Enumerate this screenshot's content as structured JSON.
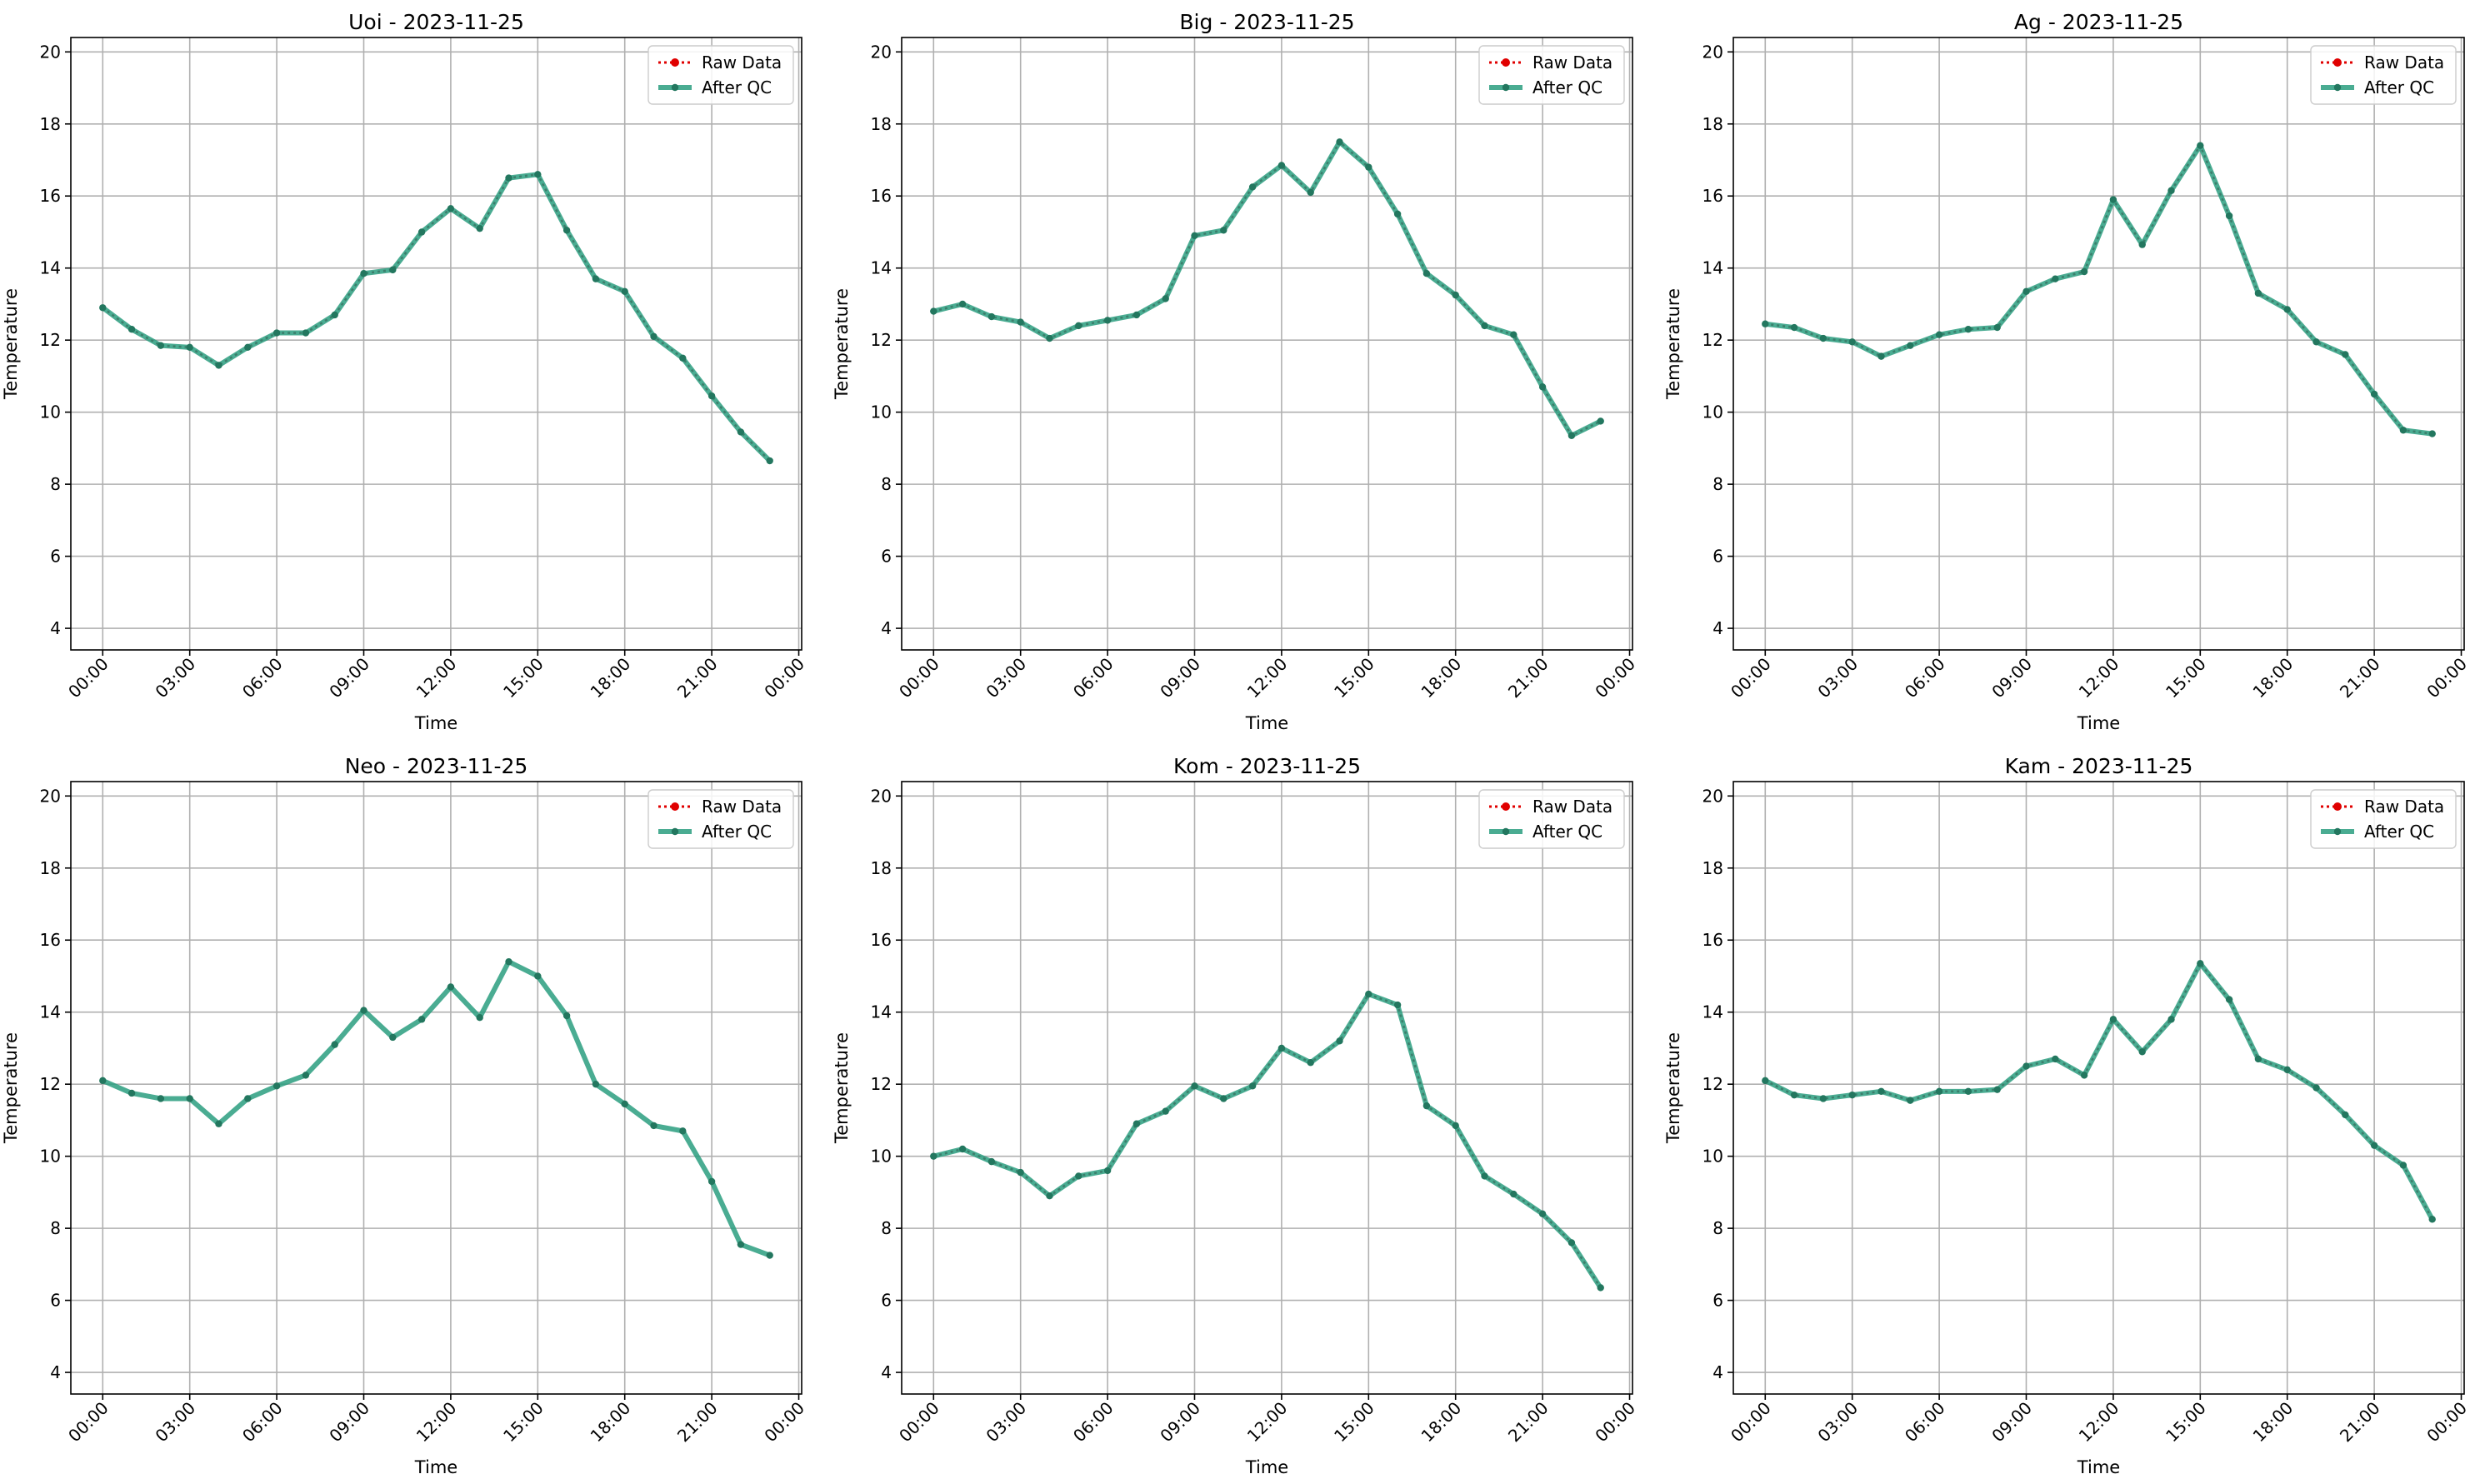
{
  "figure": {
    "colors": {
      "raw": "#e00000",
      "qc": "#2a9d7f",
      "qc_marker": "#23775f",
      "overlap_line": "#3b7f6c",
      "grid": "#b0b0b0",
      "axes": "#000000"
    }
  },
  "chart_data": [
    {
      "type": "line",
      "title": "Uoi - 2023-11-25",
      "xlabel": "Time",
      "ylabel": "Temperature",
      "ylim": [
        3.4,
        20.4
      ],
      "xlim": [
        -1.1,
        24.1
      ],
      "x_hours": [
        0,
        1,
        2,
        3,
        4,
        5,
        6,
        7,
        8,
        9,
        10,
        11,
        12,
        13,
        14,
        15,
        16,
        17,
        18,
        19,
        20,
        21,
        22,
        23
      ],
      "x_ticks": [
        "00:00",
        "03:00",
        "06:00",
        "09:00",
        "12:00",
        "15:00",
        "18:00",
        "21:00",
        "00:00"
      ],
      "y_ticks": [
        "4",
        "6",
        "8",
        "10",
        "12",
        "14",
        "16",
        "18",
        "20"
      ],
      "grid": true,
      "legend": {
        "position": "top-right",
        "entries": [
          "Raw Data",
          "After QC"
        ]
      },
      "series": [
        {
          "name": "Raw Data",
          "values": [
            12.9,
            12.3,
            11.85,
            11.8,
            11.3,
            11.8,
            12.2,
            12.2,
            12.7,
            13.85,
            13.95,
            15.0,
            15.65,
            15.1,
            16.5,
            16.6,
            15.05,
            13.7,
            13.35,
            12.1,
            11.5,
            10.45,
            9.45,
            8.65
          ]
        },
        {
          "name": "After QC",
          "values": [
            12.9,
            12.3,
            11.85,
            11.8,
            11.3,
            11.8,
            12.2,
            12.2,
            12.7,
            13.85,
            13.95,
            15.0,
            15.65,
            15.1,
            16.5,
            16.6,
            15.05,
            13.7,
            13.35,
            12.1,
            11.5,
            10.45,
            9.45,
            8.65
          ]
        }
      ]
    },
    {
      "type": "line",
      "title": "Big - 2023-11-25",
      "xlabel": "Time",
      "ylabel": "Temperature",
      "ylim": [
        3.4,
        20.4
      ],
      "xlim": [
        -1.1,
        24.1
      ],
      "x_hours": [
        0,
        1,
        2,
        3,
        4,
        5,
        6,
        7,
        8,
        9,
        10,
        11,
        12,
        13,
        14,
        15,
        16,
        17,
        18,
        19,
        20,
        21,
        22,
        23
      ],
      "x_ticks": [
        "00:00",
        "03:00",
        "06:00",
        "09:00",
        "12:00",
        "15:00",
        "18:00",
        "21:00",
        "00:00"
      ],
      "y_ticks": [
        "4",
        "6",
        "8",
        "10",
        "12",
        "14",
        "16",
        "18",
        "20"
      ],
      "grid": true,
      "legend": {
        "position": "top-right",
        "entries": [
          "Raw Data",
          "After QC"
        ]
      },
      "series": [
        {
          "name": "Raw Data",
          "values": [
            12.8,
            13.0,
            12.65,
            12.5,
            12.05,
            12.4,
            12.55,
            12.7,
            13.15,
            14.9,
            15.05,
            16.25,
            16.85,
            16.1,
            17.5,
            16.8,
            15.5,
            13.85,
            13.25,
            12.4,
            12.15,
            10.7,
            9.35,
            9.75
          ]
        },
        {
          "name": "After QC",
          "values": [
            12.8,
            13.0,
            12.65,
            12.5,
            12.05,
            12.4,
            12.55,
            12.7,
            13.15,
            14.9,
            15.05,
            16.25,
            16.85,
            16.1,
            17.5,
            16.8,
            15.5,
            13.85,
            13.25,
            12.4,
            12.15,
            10.7,
            9.35,
            9.75
          ]
        }
      ]
    },
    {
      "type": "line",
      "title": "Ag - 2023-11-25",
      "xlabel": "Time",
      "ylabel": "Temperature",
      "ylim": [
        3.4,
        20.4
      ],
      "xlim": [
        -1.1,
        24.1
      ],
      "x_hours": [
        0,
        1,
        2,
        3,
        4,
        5,
        6,
        7,
        8,
        9,
        10,
        11,
        12,
        13,
        14,
        15,
        16,
        17,
        18,
        19,
        20,
        21,
        22,
        23
      ],
      "x_ticks": [
        "00:00",
        "03:00",
        "06:00",
        "09:00",
        "12:00",
        "15:00",
        "18:00",
        "21:00",
        "00:00"
      ],
      "y_ticks": [
        "4",
        "6",
        "8",
        "10",
        "12",
        "14",
        "16",
        "18",
        "20"
      ],
      "grid": true,
      "legend": {
        "position": "top-right",
        "entries": [
          "Raw Data",
          "After QC"
        ]
      },
      "series": [
        {
          "name": "Raw Data",
          "values": [
            12.45,
            12.35,
            12.05,
            11.95,
            11.55,
            11.85,
            12.15,
            12.3,
            12.35,
            13.35,
            13.7,
            13.9,
            15.9,
            14.65,
            16.15,
            17.4,
            15.45,
            13.3,
            12.85,
            11.95,
            11.6,
            10.5,
            9.5,
            9.4
          ]
        },
        {
          "name": "After QC",
          "values": [
            12.45,
            12.35,
            12.05,
            11.95,
            11.55,
            11.85,
            12.15,
            12.3,
            12.35,
            13.35,
            13.7,
            13.9,
            15.9,
            14.65,
            16.15,
            17.4,
            15.45,
            13.3,
            12.85,
            11.95,
            11.6,
            10.5,
            9.5,
            9.4
          ]
        }
      ]
    },
    {
      "type": "line",
      "title": "Neo - 2023-11-25",
      "xlabel": "Time",
      "ylabel": "Temperature",
      "ylim": [
        3.4,
        20.4
      ],
      "xlim": [
        -1.1,
        24.1
      ],
      "x_hours": [
        0,
        1,
        2,
        3,
        4,
        5,
        6,
        7,
        8,
        9,
        10,
        11,
        12,
        13,
        14,
        15,
        16,
        17,
        18,
        19,
        20,
        21,
        22,
        23
      ],
      "x_ticks": [
        "00:00",
        "03:00",
        "06:00",
        "09:00",
        "12:00",
        "15:00",
        "18:00",
        "21:00",
        "00:00"
      ],
      "y_ticks": [
        "4",
        "6",
        "8",
        "10",
        "12",
        "14",
        "16",
        "18",
        "20"
      ],
      "grid": true,
      "legend": {
        "position": "top-right",
        "entries": [
          "Raw Data",
          "After QC"
        ]
      },
      "series": [
        {
          "name": "Raw Data",
          "values": []
        },
        {
          "name": "After QC",
          "values": [
            12.1,
            11.75,
            11.6,
            11.6,
            10.9,
            11.6,
            11.95,
            12.25,
            13.1,
            14.05,
            13.3,
            13.8,
            14.7,
            13.85,
            15.4,
            15.0,
            13.9,
            12.0,
            11.45,
            10.85,
            10.7,
            9.3,
            7.55,
            7.25
          ]
        }
      ]
    },
    {
      "type": "line",
      "title": "Kom - 2023-11-25",
      "xlabel": "Time",
      "ylabel": "Temperature",
      "ylim": [
        3.4,
        20.4
      ],
      "xlim": [
        -1.1,
        24.1
      ],
      "x_hours": [
        0,
        1,
        2,
        3,
        4,
        5,
        6,
        7,
        8,
        9,
        10,
        11,
        12,
        13,
        14,
        15,
        16,
        17,
        18,
        19,
        20,
        21,
        22,
        23
      ],
      "x_ticks": [
        "00:00",
        "03:00",
        "06:00",
        "09:00",
        "12:00",
        "15:00",
        "18:00",
        "21:00",
        "00:00"
      ],
      "y_ticks": [
        "4",
        "6",
        "8",
        "10",
        "12",
        "14",
        "16",
        "18",
        "20"
      ],
      "grid": true,
      "legend": {
        "position": "top-right",
        "entries": [
          "Raw Data",
          "After QC"
        ]
      },
      "series": [
        {
          "name": "Raw Data",
          "values": [
            10.0,
            10.2,
            9.85,
            9.55,
            8.9,
            9.45,
            9.6,
            10.9,
            11.25,
            11.95,
            11.6,
            11.95,
            13.0,
            12.6,
            13.2,
            14.5,
            14.2,
            11.4,
            10.85,
            9.45,
            8.95,
            8.4,
            7.6,
            6.35
          ]
        },
        {
          "name": "After QC",
          "values": [
            10.0,
            10.2,
            9.85,
            9.55,
            8.9,
            9.45,
            9.6,
            10.9,
            11.25,
            11.95,
            11.6,
            11.95,
            13.0,
            12.6,
            13.2,
            14.5,
            14.2,
            11.4,
            10.85,
            9.45,
            8.95,
            8.4,
            7.6,
            6.35
          ]
        }
      ]
    },
    {
      "type": "line",
      "title": "Kam - 2023-11-25",
      "xlabel": "Time",
      "ylabel": "Temperature",
      "ylim": [
        3.4,
        20.4
      ],
      "xlim": [
        -1.1,
        24.1
      ],
      "x_hours": [
        0,
        1,
        2,
        3,
        4,
        5,
        6,
        7,
        8,
        9,
        10,
        11,
        12,
        13,
        14,
        15,
        16,
        17,
        18,
        19,
        20,
        21,
        22,
        23
      ],
      "x_ticks": [
        "00:00",
        "03:00",
        "06:00",
        "09:00",
        "12:00",
        "15:00",
        "18:00",
        "21:00",
        "00:00"
      ],
      "y_ticks": [
        "4",
        "6",
        "8",
        "10",
        "12",
        "14",
        "16",
        "18",
        "20"
      ],
      "grid": true,
      "legend": {
        "position": "top-right",
        "entries": [
          "Raw Data",
          "After QC"
        ]
      },
      "series": [
        {
          "name": "Raw Data",
          "values": [
            12.1,
            11.7,
            11.6,
            11.7,
            11.8,
            11.55,
            11.8,
            11.8,
            11.85,
            12.5,
            12.7,
            12.25,
            13.8,
            12.9,
            13.8,
            15.35,
            14.35,
            12.7,
            12.4,
            11.9,
            11.15,
            10.3,
            9.75,
            8.25
          ]
        },
        {
          "name": "After QC",
          "values": [
            12.1,
            11.7,
            11.6,
            11.7,
            11.8,
            11.55,
            11.8,
            11.8,
            11.85,
            12.5,
            12.7,
            12.25,
            13.8,
            12.9,
            13.8,
            15.35,
            14.35,
            12.7,
            12.4,
            11.9,
            11.15,
            10.3,
            9.75,
            8.25
          ]
        }
      ]
    }
  ]
}
